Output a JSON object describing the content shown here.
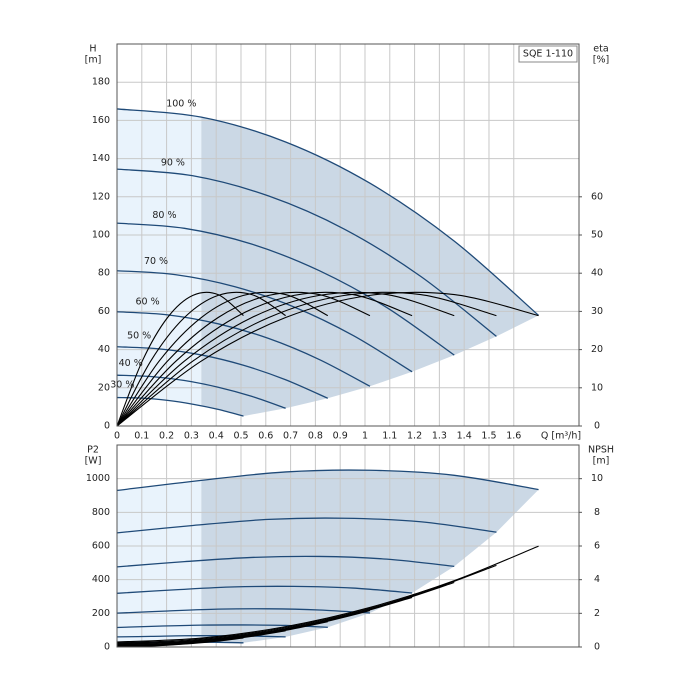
{
  "chart_data": [
    {
      "type": "line",
      "label": "SQE 1-110",
      "y_label": "H",
      "y_unit": "[m]",
      "y2_label": "eta",
      "y2_unit": "[%]",
      "x_label": "Q [m³/h]",
      "xlim": [
        0,
        1.863
      ],
      "xticks": [
        0,
        0.1,
        0.2,
        0.3,
        0.4,
        0.5,
        0.6,
        0.7,
        0.8,
        0.9,
        1,
        1.1,
        1.2,
        1.3,
        1.4,
        1.5,
        1.6
      ],
      "ylim": [
        0,
        200
      ],
      "yticks": [
        0,
        20,
        40,
        60,
        80,
        100,
        120,
        140,
        160,
        180
      ],
      "y2lim": [
        0,
        100
      ],
      "y2ticks": [
        0,
        10,
        20,
        30,
        40,
        50,
        60
      ],
      "grid": true,
      "series": [
        {
          "name": "100 %",
          "color": "#1f4a78",
          "x": [
            0,
            0.34,
            0.68,
            1.02,
            1.36,
            1.7
          ],
          "values": [
            166,
            161.7,
            148.7,
            127.1,
            96.8,
            57.9
          ]
        },
        {
          "name": "90 %",
          "color": "#1f4a78",
          "x": [
            0,
            0.306,
            0.612,
            0.918,
            1.224,
            1.53
          ],
          "values": [
            134.5,
            131,
            120.4,
            103,
            78.4,
            46.9
          ]
        },
        {
          "name": "80 %",
          "color": "#1f4a78",
          "x": [
            0,
            0.272,
            0.544,
            0.816,
            1.088,
            1.36
          ],
          "values": [
            106.2,
            103.5,
            95.2,
            81.3,
            62,
            37.1
          ]
        },
        {
          "name": "70 %",
          "color": "#1f4a78",
          "x": [
            0,
            0.238,
            0.476,
            0.714,
            0.952,
            1.19
          ],
          "values": [
            81.3,
            79.2,
            72.9,
            62.3,
            47.4,
            28.4
          ]
        },
        {
          "name": "60 %",
          "color": "#1f4a78",
          "x": [
            0,
            0.204,
            0.408,
            0.612,
            0.816,
            1.02
          ],
          "values": [
            59.8,
            58.2,
            53.5,
            45.8,
            34.8,
            20.8
          ]
        },
        {
          "name": "50 %",
          "color": "#1f4a78",
          "x": [
            0,
            0.17,
            0.34,
            0.51,
            0.68,
            0.85
          ],
          "values": [
            41.5,
            40.4,
            37.2,
            31.8,
            24.2,
            14.5
          ]
        },
        {
          "name": "40 %",
          "color": "#1f4a78",
          "x": [
            0,
            0.136,
            0.272,
            0.408,
            0.544,
            0.68
          ],
          "values": [
            26.6,
            25.9,
            23.8,
            20.3,
            15.5,
            9.3
          ]
        },
        {
          "name": "30 %",
          "color": "#1f4a78",
          "x": [
            0,
            0.102,
            0.204,
            0.306,
            0.408,
            0.51
          ],
          "values": [
            14.9,
            14.6,
            13.4,
            11.4,
            8.7,
            5.2
          ]
        },
        {
          "axis": "y2",
          "color": "#000000",
          "x": [
            0,
            0.34,
            0.68,
            1.02,
            1.36,
            1.7
          ],
          "values": [
            0,
            17,
            28.4,
            34.2,
            34.4,
            28.9
          ]
        },
        {
          "axis": "y2",
          "color": "#000000",
          "x": [
            0,
            0.306,
            0.612,
            0.918,
            1.224,
            1.53
          ],
          "values": [
            0,
            17,
            28.4,
            34.2,
            34.4,
            28.9
          ]
        },
        {
          "axis": "y2",
          "color": "#000000",
          "x": [
            0,
            0.272,
            0.544,
            0.816,
            1.088,
            1.36
          ],
          "values": [
            0,
            17,
            28.4,
            34.2,
            34.4,
            28.9
          ]
        },
        {
          "axis": "y2",
          "color": "#000000",
          "x": [
            0,
            0.238,
            0.476,
            0.714,
            0.952,
            1.19
          ],
          "values": [
            0,
            17,
            28.4,
            34.2,
            34.4,
            28.9
          ]
        },
        {
          "axis": "y2",
          "color": "#000000",
          "x": [
            0,
            0.204,
            0.408,
            0.612,
            0.816,
            1.02
          ],
          "values": [
            0,
            17,
            28.4,
            34.2,
            34.4,
            28.9
          ]
        },
        {
          "axis": "y2",
          "color": "#000000",
          "x": [
            0,
            0.17,
            0.34,
            0.51,
            0.68,
            0.85
          ],
          "values": [
            0,
            17,
            28.4,
            34.2,
            34.4,
            28.9
          ]
        },
        {
          "axis": "y2",
          "color": "#000000",
          "x": [
            0,
            0.136,
            0.272,
            0.408,
            0.544,
            0.68
          ],
          "values": [
            0,
            17,
            28.4,
            34.2,
            34.4,
            28.9
          ]
        },
        {
          "axis": "y2",
          "color": "#000000",
          "x": [
            0,
            0.102,
            0.204,
            0.306,
            0.408,
            0.51
          ],
          "values": [
            0,
            17,
            28.4,
            34.2,
            34.4,
            28.9
          ]
        }
      ]
    },
    {
      "type": "line",
      "y_label": "P2",
      "y_unit": "[W]",
      "y2_label": "NPSH",
      "y2_unit": "[m]",
      "xlim": [
        0,
        1.863
      ],
      "ylim": [
        0,
        1200
      ],
      "yticks": [
        0,
        200,
        400,
        600,
        800,
        1000
      ],
      "y2lim": [
        0,
        12
      ],
      "y2ticks": [
        0,
        2,
        4,
        6,
        8,
        10
      ],
      "grid": true,
      "series": [
        {
          "color": "#1f4a78",
          "x": [
            0,
            0.34,
            0.68,
            1.02,
            1.36,
            1.7
          ],
          "values": [
            930,
            990,
            1040,
            1050,
            1020,
            935
          ]
        },
        {
          "color": "#1f4a78",
          "x": [
            0,
            0.306,
            0.612,
            0.918,
            1.224,
            1.53
          ],
          "values": [
            678,
            722,
            758,
            765,
            744,
            682
          ]
        },
        {
          "color": "#1f4a78",
          "x": [
            0,
            0.272,
            0.544,
            0.816,
            1.088,
            1.36
          ],
          "values": [
            476,
            507,
            532,
            538,
            522,
            479
          ]
        },
        {
          "color": "#1f4a78",
          "x": [
            0,
            0.238,
            0.476,
            0.714,
            0.952,
            1.19
          ],
          "values": [
            319,
            340,
            357,
            360,
            350,
            321
          ]
        },
        {
          "color": "#1f4a78",
          "x": [
            0,
            0.204,
            0.408,
            0.612,
            0.816,
            1.02
          ],
          "values": [
            201,
            214,
            225,
            227,
            220,
            202
          ]
        },
        {
          "color": "#1f4a78",
          "x": [
            0,
            0.17,
            0.34,
            0.51,
            0.68,
            0.85
          ],
          "values": [
            116,
            124,
            130,
            131,
            128,
            117
          ]
        },
        {
          "color": "#1f4a78",
          "x": [
            0,
            0.136,
            0.272,
            0.408,
            0.544,
            0.68
          ],
          "values": [
            60,
            63,
            67,
            67,
            65,
            60
          ]
        },
        {
          "color": "#1f4a78",
          "x": [
            0,
            0.102,
            0.204,
            0.306,
            0.408,
            0.51
          ],
          "values": [
            25,
            27,
            28,
            28,
            28,
            25
          ]
        },
        {
          "axis": "y2",
          "color": "#000000",
          "x": [
            0,
            0.34,
            0.68,
            1.02,
            1.36,
            1.7
          ],
          "values": [
            0.3,
            0.53,
            1.21,
            2.35,
            3.94,
            5.99
          ]
        },
        {
          "axis": "y2",
          "color": "#000000",
          "x": [
            0,
            0.306,
            0.612,
            0.918,
            1.224,
            1.53
          ],
          "values": [
            0.24,
            0.43,
            0.98,
            1.9,
            3.19,
            4.85
          ]
        },
        {
          "axis": "y2",
          "color": "#000000",
          "x": [
            0,
            0.272,
            0.544,
            0.816,
            1.088,
            1.36
          ],
          "values": [
            0.19,
            0.34,
            0.77,
            1.5,
            2.52,
            3.83
          ]
        },
        {
          "axis": "y2",
          "color": "#000000",
          "x": [
            0,
            0.238,
            0.476,
            0.714,
            0.952,
            1.19
          ],
          "values": [
            0.15,
            0.26,
            0.59,
            1.15,
            1.93,
            2.94
          ]
        },
        {
          "axis": "y2",
          "color": "#000000",
          "x": [
            0,
            0.204,
            0.408,
            0.612,
            0.816,
            1.02
          ],
          "values": [
            0.11,
            0.19,
            0.44,
            0.85,
            1.42,
            2.16
          ]
        },
        {
          "axis": "y2",
          "color": "#000000",
          "x": [
            0,
            0.17,
            0.34,
            0.51,
            0.68,
            0.85
          ],
          "values": [
            0.08,
            0.13,
            0.3,
            0.59,
            0.99,
            1.5
          ]
        },
        {
          "axis": "y2",
          "color": "#000000",
          "x": [
            0,
            0.136,
            0.272,
            0.408,
            0.544,
            0.68
          ],
          "values": [
            0.05,
            0.08,
            0.19,
            0.38,
            0.63,
            0.96
          ]
        },
        {
          "axis": "y2",
          "color": "#000000",
          "x": [
            0,
            0.102,
            0.204,
            0.306,
            0.408,
            0.51
          ],
          "values": [
            0.03,
            0.05,
            0.11,
            0.21,
            0.35,
            0.54
          ]
        }
      ]
    }
  ]
}
